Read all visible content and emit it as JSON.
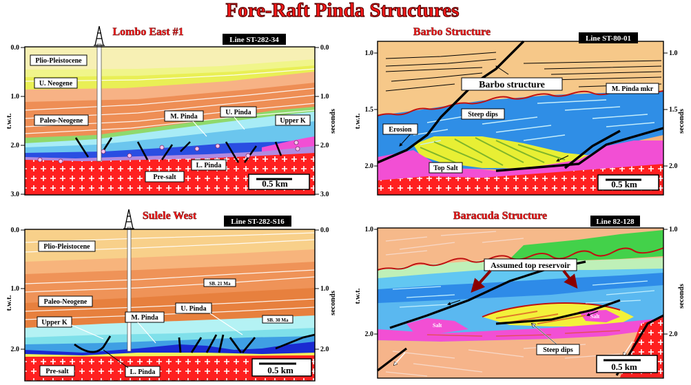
{
  "main_title": "Fore-Raft Pinda Structures",
  "colors": {
    "title_fill": "#ff1a1a",
    "salt_red": "#ff2020",
    "salt_pink": "#f24fd4",
    "paleo_orange": "#ef8a52",
    "upper_tan": "#f6c889",
    "neogene_yellow": "#e8f05a",
    "pinda_blue": "#2f8ee6",
    "pinda_cyan": "#9fe6f5",
    "green": "#43d14a"
  },
  "panels": {
    "lombo": {
      "title": "Lombo East #1",
      "line": "Line ST-282-34",
      "axis_left": "t.w.t.",
      "axis_right": "seconds",
      "ticks_left": [
        "0.0",
        "1.0",
        "2.0",
        "3.0"
      ],
      "ticks_right": [
        "0.0",
        "1.0",
        "2.0",
        "3.0"
      ],
      "labels": {
        "plio": "Plio-Pleistocene",
        "uneo": "U. Neogene",
        "paleo": "Paleo-Neogene",
        "mpinda": "M. Pinda",
        "upinda": "U. Pinda",
        "upperk": "Upper K",
        "lpinda": "L. Pinda",
        "presalt": "Pre-salt"
      },
      "scale": "0.5 km"
    },
    "barbo": {
      "title": "Barbo Structure",
      "line": "Line ST-80-01",
      "axis_left": "t.w.t.",
      "axis_right": "seconds",
      "ticks_left": [
        "1.0",
        "1.5",
        "2.0"
      ],
      "ticks_right": [
        "1.0",
        "1.5",
        "2.0"
      ],
      "labels": {
        "structure": "Barbo structure",
        "mkr": "M. Pinda mkr",
        "steep": "Steep dips",
        "erosion": "Erosion",
        "topsalt": "Top Salt"
      },
      "scale": "0.5 km"
    },
    "sulele": {
      "title": "Sulele West",
      "line": "Line ST-282-S16",
      "axis_left": "t.w.t.",
      "axis_right": "seconds",
      "ticks_left": [
        "0.0",
        "1.0",
        "2.0"
      ],
      "ticks_right": [
        "0.0",
        "1.0",
        "2.0"
      ],
      "labels": {
        "plio": "Plio-Pleistocene",
        "paleo": "Paleo-Neogene",
        "sb21": "SB. 21 Ma",
        "sb30": "SB. 30 Ma",
        "upinda": "U. Pinda",
        "mpinda": "M. Pinda",
        "upperk": "Upper K",
        "presalt": "Pre-salt",
        "lpinda": "L. Pinda"
      },
      "scale": "0.5 km"
    },
    "baracuda": {
      "title": "Baracuda Structure",
      "line": "Line 82-128",
      "axis_left": "t.w.t.",
      "axis_right": "seconds",
      "ticks_left": [
        "1.0",
        "2.0"
      ],
      "ticks_right": [
        "1.0",
        "2.0"
      ],
      "labels": {
        "reservoir": "Assumed top reservoir",
        "salt1": "Salt",
        "salt2": "Salt",
        "steep": "Steep dips"
      },
      "scale": "0.5 km"
    }
  }
}
